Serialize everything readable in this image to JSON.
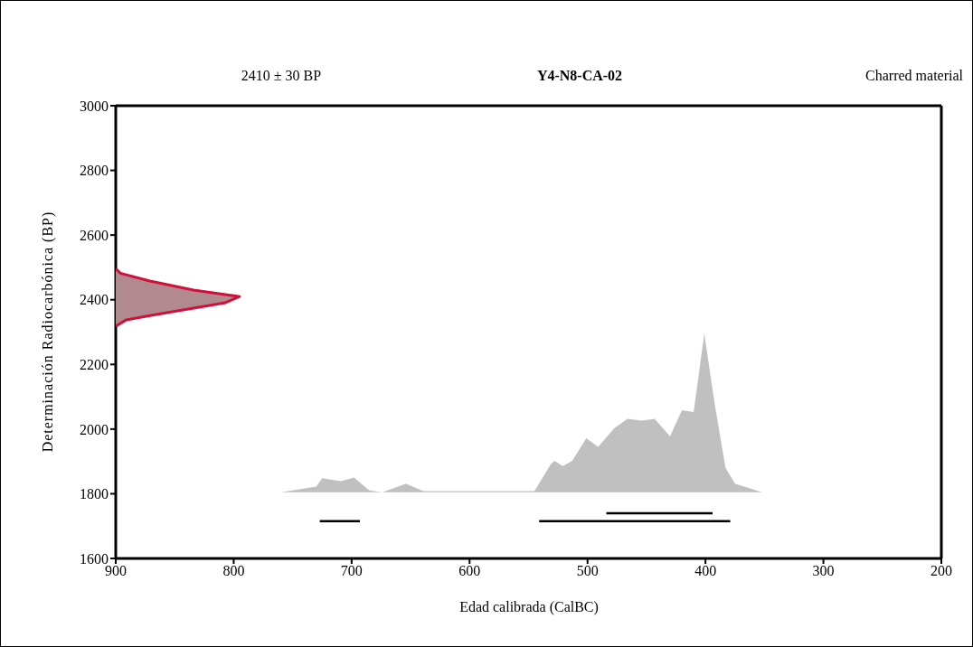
{
  "chart_data": {
    "type": "area",
    "title": "Y4-N8-CA-02",
    "subtitle": "Charred material",
    "xlabel": "Edad calibrada (CalBC)",
    "ylabel": "Determinación Radiocarbónica (BP)",
    "annotations": [
      "2410 ± 30 BP"
    ],
    "xlim": [
      900,
      200
    ],
    "xticks": [
      900,
      800,
      700,
      600,
      500,
      400,
      300,
      200
    ],
    "ylim": [
      1600,
      3000
    ],
    "yticks": [
      1600,
      1800,
      2000,
      2200,
      2400,
      2600,
      2800,
      3000
    ],
    "series": [
      {
        "color": "#d0103a",
        "x": [
          900,
          896,
          871,
          834,
          807,
          795,
          807,
          834,
          871,
          891,
          900
        ],
        "values": [
          2496,
          2482,
          2458,
          2430,
          2416,
          2410,
          2391,
          2374,
          2351,
          2338,
          2318
        ]
      },
      {
        "color": "#c0c0c0",
        "x": [
          760,
          730,
          725,
          709,
          698,
          685,
          674,
          654,
          639,
          545,
          531,
          528,
          521,
          513,
          501,
          491,
          477,
          466,
          454,
          443,
          430,
          420,
          410,
          401,
          392,
          383,
          375,
          352
        ],
        "values": [
          1805,
          1822,
          1848,
          1839,
          1850,
          1810,
          1805,
          1831,
          1808,
          1808,
          1892,
          1902,
          1886,
          1902,
          1972,
          1945,
          2004,
          2032,
          2026,
          2032,
          1977,
          2058,
          2053,
          2295,
          2074,
          1880,
          1831,
          1805
        ]
      },
      {
        "type": "line",
        "color": "#000000",
        "x": [
          727,
          693
        ],
        "values": [
          1715,
          1715
        ]
      },
      {
        "type": "line",
        "color": "#000000",
        "x": [
          541,
          379
        ],
        "values": [
          1715,
          1715
        ]
      },
      {
        "type": "line",
        "color": "#000000",
        "x": [
          484,
          394
        ],
        "values": [
          1740,
          1740
        ]
      }
    ]
  }
}
